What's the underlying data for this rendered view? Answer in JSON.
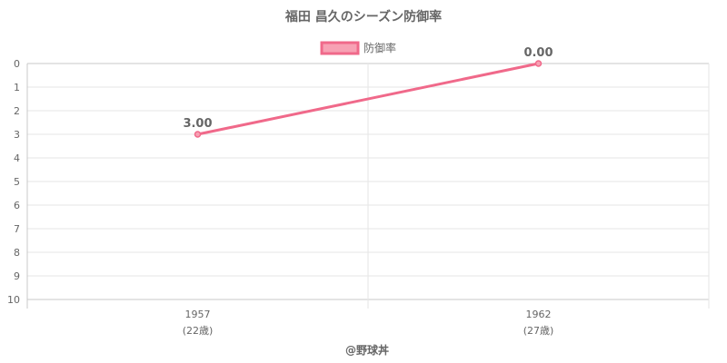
{
  "chart_data": {
    "type": "line",
    "title": "福田 昌久のシーズン防御率",
    "legend": {
      "position": "top",
      "label": "防御率"
    },
    "categories": [
      {
        "year": "1957",
        "age": "(22歳)"
      },
      {
        "year": "1962",
        "age": "(27歳)"
      }
    ],
    "series": [
      {
        "name": "防御率",
        "values": [
          3.0,
          0.0
        ],
        "labels": [
          "3.00",
          "0.00"
        ],
        "color": "#f0698a",
        "fill_color": "#f7a1b4"
      }
    ],
    "y_axis": {
      "min": 0,
      "max": 10,
      "step": 1,
      "reversed": true,
      "ticks": [
        "0",
        "1",
        "2",
        "3",
        "4",
        "5",
        "6",
        "7",
        "8",
        "9",
        "10"
      ]
    },
    "grid": true
  },
  "credit": "@野球丼"
}
